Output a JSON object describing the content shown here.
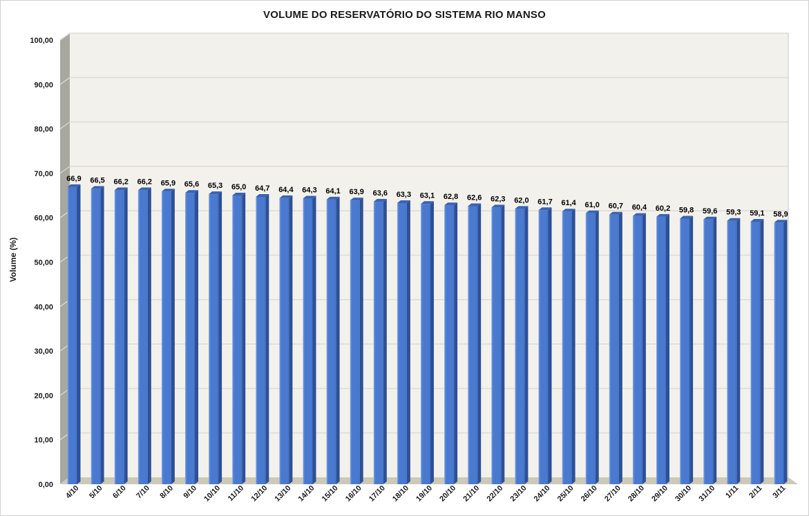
{
  "chart_data": {
    "type": "bar",
    "style": "3d-column",
    "title": "VOLUME DO RESERVATÓRIO DO SISTEMA RIO MANSO",
    "xlabel": "",
    "ylabel": "Volume (%)",
    "ylim": [
      0,
      100
    ],
    "grid": true,
    "legend": "none",
    "categories": [
      "4/10",
      "5/10",
      "6/10",
      "7/10",
      "8/10",
      "9/10",
      "10/10",
      "11/10",
      "12/10",
      "13/10",
      "14/10",
      "15/10",
      "16/10",
      "17/10",
      "18/10",
      "19/10",
      "20/10",
      "21/10",
      "22/10",
      "23/10",
      "24/10",
      "25/10",
      "26/10",
      "27/10",
      "28/10",
      "29/10",
      "30/10",
      "31/10",
      "1/11",
      "2/11",
      "3/11"
    ],
    "values": [
      66.9,
      66.5,
      66.2,
      66.2,
      65.9,
      65.6,
      65.3,
      65.0,
      64.7,
      64.4,
      64.3,
      64.1,
      63.9,
      63.6,
      63.3,
      63.1,
      62.8,
      62.6,
      62.3,
      62.0,
      61.7,
      61.4,
      61.0,
      60.7,
      60.4,
      60.2,
      59.8,
      59.6,
      59.3,
      59.1,
      58.9
    ],
    "value_labels": [
      "66,9",
      "66,5",
      "66,2",
      "66,2",
      "65,9",
      "65,6",
      "65,3",
      "65,0",
      "64,7",
      "64,4",
      "64,3",
      "64,1",
      "63,9",
      "63,6",
      "63,3",
      "63,1",
      "62,8",
      "62,6",
      "62,3",
      "62,0",
      "61,7",
      "61,4",
      "61,0",
      "60,7",
      "60,4",
      "60,2",
      "59,8",
      "59,6",
      "59,3",
      "59,1",
      "58,9"
    ],
    "y_ticks": [
      "0,00",
      "10,00",
      "20,00",
      "30,00",
      "40,00",
      "50,00",
      "60,00",
      "70,00",
      "80,00",
      "90,00",
      "100,00"
    ],
    "colors": {
      "bar_front": "#4a79d0",
      "bar_front_highlight": "#9ab5ec",
      "bar_front_shade": "#4372c4",
      "bar_top": "#3a63b2",
      "bar_side": "#2d5096",
      "wall": "#a8a7a0",
      "wall_edge": "#c9c8c2",
      "wall_tick": "#e9e7e1",
      "floor": "#ccc9b8",
      "plot_bg": "#f3f1eb",
      "gridline": "#dedcd4",
      "plot_border": "#c9c7bf",
      "text": "#1a1a1a",
      "value_text": "#000000"
    }
  }
}
